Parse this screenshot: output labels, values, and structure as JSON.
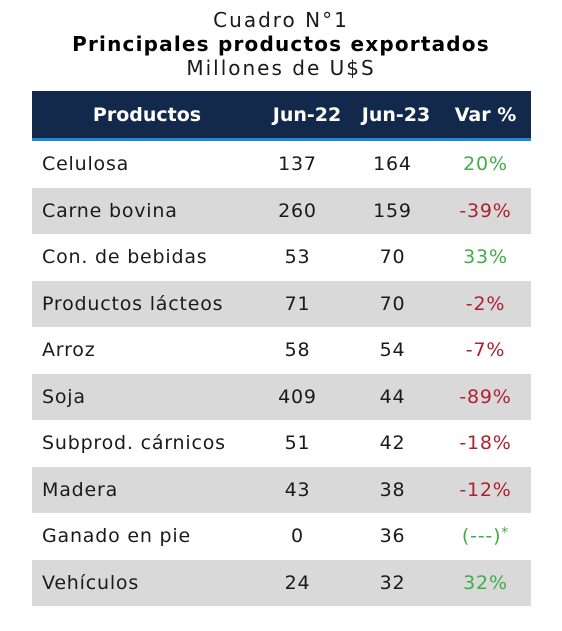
{
  "title": "Cuadro N°1",
  "subtitle": "Principales productos exportados",
  "unit": "Millones de U$S",
  "colors": {
    "header_bg": "#13294b",
    "header_rule": "#1e88d0",
    "positive": "#3fae49",
    "negative": "#b02030",
    "row_shade": "#d9d9d9"
  },
  "chart_data": {
    "type": "table",
    "title": "Cuadro N°1",
    "subtitle": "Principales productos exportados",
    "unit": "Millones de U$S",
    "columns": [
      "Productos",
      "Jun-22",
      "Jun-23",
      "Var %"
    ],
    "rows": [
      {
        "producto": "Celulosa",
        "jun22": "137",
        "jun23": "164",
        "var": "20%",
        "sign": "pos"
      },
      {
        "producto": "Carne bovina",
        "jun22": "260",
        "jun23": "159",
        "var": "-39%",
        "sign": "neg"
      },
      {
        "producto": "Con. de bebidas",
        "jun22": "53",
        "jun23": "70",
        "var": "33%",
        "sign": "pos"
      },
      {
        "producto": "Productos lácteos",
        "jun22": "71",
        "jun23": "70",
        "var": "-2%",
        "sign": "neg"
      },
      {
        "producto": "Arroz",
        "jun22": "58",
        "jun23": "54",
        "var": "-7%",
        "sign": "neg"
      },
      {
        "producto": "Soja",
        "jun22": "409",
        "jun23": "44",
        "var": "-89%",
        "sign": "neg"
      },
      {
        "producto": "Subprod. cárnicos",
        "jun22": "51",
        "jun23": "42",
        "var": "-18%",
        "sign": "neg"
      },
      {
        "producto": "Madera",
        "jun22": "43",
        "jun23": "38",
        "var": "-12%",
        "sign": "neg"
      },
      {
        "producto": "Ganado en pie",
        "jun22": "0",
        "jun23": "36",
        "var": "(---)",
        "note": "*",
        "sign": "pos"
      },
      {
        "producto": "Vehículos",
        "jun22": "24",
        "jun23": "32",
        "var": "32%",
        "sign": "pos"
      }
    ]
  }
}
